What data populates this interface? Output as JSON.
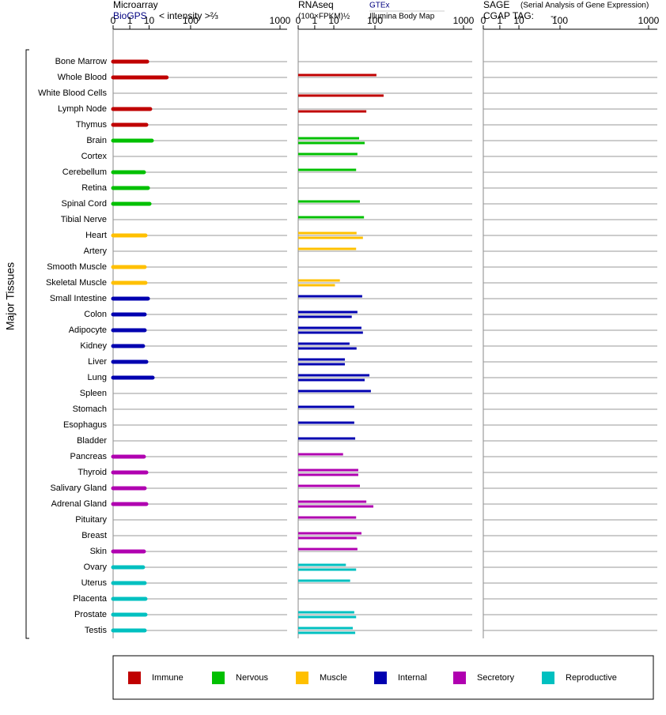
{
  "chart_data": [
    {
      "type": "hbar",
      "title": "Microarray",
      "xlabel": "< intensity >⅔",
      "ylabel": "Major Tissues",
      "categories": [
        "Bone Marrow",
        "Whole Blood",
        "White Blood Cells",
        "Lymph Node",
        "Thymus",
        "Brain",
        "Cortex",
        "Cerebellum",
        "Retina",
        "Spinal Cord",
        "Tibial Nerve",
        "Heart",
        "Artery",
        "Smooth Muscle",
        "Skeletal Muscle",
        "Small Intestine",
        "Colon",
        "Adipocyte",
        "Kidney",
        "Liver",
        "Lung",
        "Spleen",
        "Stomach",
        "Esophagus",
        "Bladder",
        "Pancreas",
        "Thyroid",
        "Salivary Gland",
        "Adrenal Gland",
        "Pituitary",
        "Breast",
        "Skin",
        "Ovary",
        "Uterus",
        "Placenta",
        "Prostate",
        "Testis"
      ],
      "category_group": [
        0,
        0,
        0,
        0,
        0,
        1,
        1,
        1,
        1,
        1,
        1,
        2,
        2,
        2,
        2,
        3,
        3,
        3,
        3,
        3,
        3,
        3,
        3,
        3,
        3,
        4,
        4,
        4,
        4,
        4,
        4,
        4,
        5,
        5,
        5,
        5,
        5
      ],
      "xlim": [
        0,
        1000
      ],
      "xticks": [
        0,
        1,
        10,
        100,
        1000
      ],
      "series": [
        {
          "name": "BioGPS",
          "color": "#000080",
          "values": [
            8.5,
            33,
            null,
            11,
            7.9,
            12.5,
            null,
            6.3,
            9.1,
            10.4,
            null,
            7.3,
            null,
            6.8,
            7.3,
            9.1,
            6.8,
            6.8,
            5.8,
            7.9,
            13.3,
            null,
            null,
            null,
            null,
            6.3,
            7.9,
            6.8,
            7.9,
            null,
            null,
            6.3,
            5.8,
            6.8,
            7.3,
            7.3,
            6.8
          ]
        }
      ]
    },
    {
      "type": "hbar",
      "title": "RNAseq",
      "xlabel": "(100×FPKM)½",
      "xlim": [
        0,
        1000
      ],
      "xticks": [
        0,
        1,
        10,
        100,
        1000
      ],
      "series": [
        {
          "name": "GTEx",
          "color": "#000080",
          "values": [
            null,
            106,
            null,
            null,
            null,
            50,
            46,
            43,
            null,
            52,
            63,
            44,
            43,
            null,
            16,
            58,
            46,
            56,
            30,
            22.5,
            80,
            85,
            39,
            39,
            41,
            20,
            48,
            52,
            70,
            43,
            56,
            46,
            24,
            31,
            null,
            39,
            36
          ]
        },
        {
          "name": "Illumina Body Map",
          "color": "#000000",
          "values": [
            null,
            null,
            138,
            70,
            null,
            65,
            null,
            null,
            null,
            null,
            null,
            60,
            null,
            null,
            11,
            null,
            34,
            60,
            44,
            22.5,
            65,
            null,
            null,
            null,
            null,
            null,
            48,
            null,
            94,
            null,
            44,
            null,
            43,
            null,
            null,
            43,
            41
          ]
        }
      ]
    },
    {
      "type": "hbar",
      "title": "SAGE",
      "subtitle": "(Serial Analysis of Gene Expression)",
      "tag_label": "CGAP TAG:",
      "tag": "--",
      "xlim": [
        0,
        1000
      ],
      "xticks": [
        0,
        1,
        10,
        100,
        1000
      ],
      "series": []
    }
  ],
  "legend": [
    {
      "name": "Immune",
      "color": "#c00000"
    },
    {
      "name": "Nervous",
      "color": "#00c000"
    },
    {
      "name": "Muscle",
      "color": "#ffc000"
    },
    {
      "name": "Internal",
      "color": "#0000b0"
    },
    {
      "name": "Secretory",
      "color": "#b000b0"
    },
    {
      "name": "Reproductive",
      "color": "#00c0c0"
    }
  ]
}
